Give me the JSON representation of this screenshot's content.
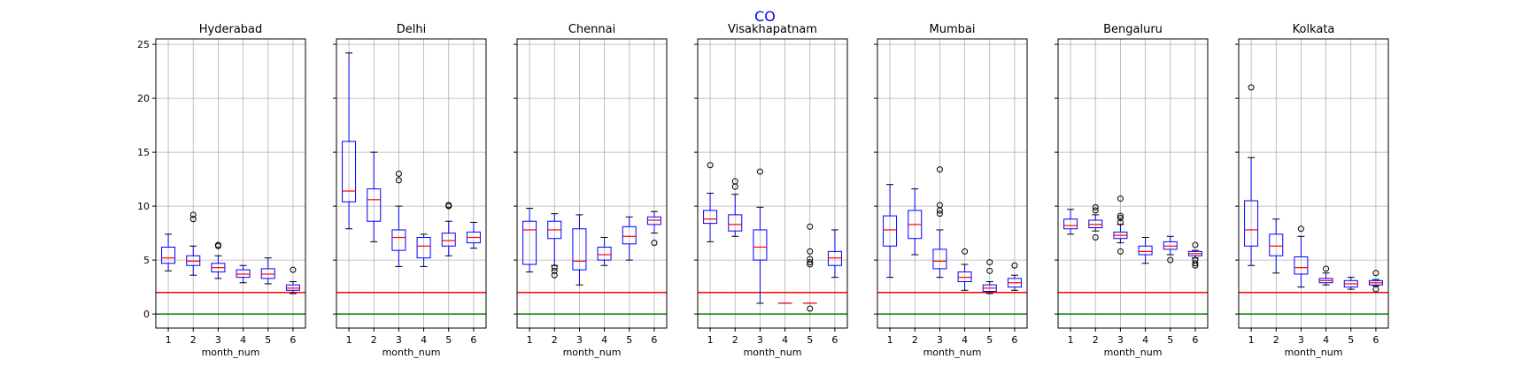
{
  "suptitle": "CO",
  "colors": {
    "box": "#0000ff",
    "median": "#ff0000",
    "whisker": "#0000ff",
    "grid": "#b0b0b0",
    "threshold_line": "#ff0000",
    "zero_line": "#008000",
    "flier": "#000000"
  },
  "chart_data": {
    "type": "boxplot",
    "ylim": [
      -1.3,
      25.5
    ],
    "yticks": [
      0,
      5,
      10,
      15,
      20,
      25
    ],
    "categories": [
      "1",
      "2",
      "3",
      "4",
      "5",
      "6"
    ],
    "xlabel": "month_num",
    "grid": true,
    "sharey": true,
    "hlines": [
      {
        "y": 2,
        "color": "red"
      },
      {
        "y": 0,
        "color": "green"
      }
    ],
    "panels": [
      {
        "title": "Hyderabad",
        "boxes": [
          {
            "low": 4.0,
            "q1": 4.7,
            "median": 5.2,
            "q3": 6.2,
            "high": 7.4,
            "fliers": []
          },
          {
            "low": 3.6,
            "q1": 4.5,
            "median": 4.9,
            "q3": 5.4,
            "high": 6.3,
            "fliers": [
              8.8,
              9.2
            ]
          },
          {
            "low": 3.3,
            "q1": 3.9,
            "median": 4.3,
            "q3": 4.7,
            "high": 5.4,
            "fliers": [
              6.3,
              6.4
            ]
          },
          {
            "low": 2.9,
            "q1": 3.4,
            "median": 3.7,
            "q3": 4.1,
            "high": 4.5,
            "fliers": []
          },
          {
            "low": 2.8,
            "q1": 3.3,
            "median": 3.7,
            "q3": 4.2,
            "high": 5.2,
            "fliers": []
          },
          {
            "low": 1.9,
            "q1": 2.2,
            "median": 2.4,
            "q3": 2.7,
            "high": 3.0,
            "fliers": [
              4.1
            ]
          }
        ]
      },
      {
        "title": "Delhi",
        "boxes": [
          {
            "low": 7.9,
            "q1": 10.4,
            "median": 11.4,
            "q3": 16.0,
            "high": 24.2,
            "fliers": []
          },
          {
            "low": 6.7,
            "q1": 8.6,
            "median": 10.6,
            "q3": 11.6,
            "high": 15.0,
            "fliers": []
          },
          {
            "low": 4.4,
            "q1": 5.9,
            "median": 7.1,
            "q3": 7.8,
            "high": 10.0,
            "fliers": [
              12.4,
              13.0
            ]
          },
          {
            "low": 4.4,
            "q1": 5.2,
            "median": 6.3,
            "q3": 7.1,
            "high": 7.4,
            "fliers": []
          },
          {
            "low": 5.4,
            "q1": 6.3,
            "median": 6.8,
            "q3": 7.5,
            "high": 8.6,
            "fliers": [
              10.0,
              10.1
            ]
          },
          {
            "low": 6.1,
            "q1": 6.6,
            "median": 7.1,
            "q3": 7.6,
            "high": 8.5,
            "fliers": []
          }
        ]
      },
      {
        "title": "Chennai",
        "boxes": [
          {
            "low": 3.9,
            "q1": 4.6,
            "median": 7.8,
            "q3": 8.6,
            "high": 9.8,
            "fliers": []
          },
          {
            "low": 4.5,
            "q1": 7.0,
            "median": 7.8,
            "q3": 8.6,
            "high": 9.3,
            "fliers": [
              3.6,
              4.0,
              4.3
            ]
          },
          {
            "low": 2.7,
            "q1": 4.1,
            "median": 4.9,
            "q3": 7.9,
            "high": 9.2,
            "fliers": []
          },
          {
            "low": 4.5,
            "q1": 5.0,
            "median": 5.5,
            "q3": 6.2,
            "high": 7.1,
            "fliers": []
          },
          {
            "low": 5.0,
            "q1": 6.5,
            "median": 7.2,
            "q3": 8.1,
            "high": 9.0,
            "fliers": []
          },
          {
            "low": 7.5,
            "q1": 8.3,
            "median": 8.7,
            "q3": 9.0,
            "high": 9.5,
            "fliers": [
              6.6
            ]
          }
        ]
      },
      {
        "title": "Visakhapatnam",
        "boxes": [
          {
            "low": 6.7,
            "q1": 8.4,
            "median": 8.8,
            "q3": 9.6,
            "high": 11.2,
            "fliers": [
              13.8
            ]
          },
          {
            "low": 7.2,
            "q1": 7.7,
            "median": 8.3,
            "q3": 9.2,
            "high": 11.1,
            "fliers": [
              11.8,
              12.3
            ]
          },
          {
            "low": 1.0,
            "q1": 5.0,
            "median": 6.2,
            "q3": 7.8,
            "high": 9.9,
            "fliers": [
              13.2
            ]
          },
          {
            "low": 1.0,
            "q1": 1.0,
            "median": 1.0,
            "q3": 1.0,
            "high": 1.0,
            "fliers": []
          },
          {
            "low": 1.0,
            "q1": 1.0,
            "median": 1.0,
            "q3": 1.0,
            "high": 1.0,
            "fliers": [
              0.5,
              4.6,
              4.8,
              5.1,
              5.8,
              8.1
            ]
          },
          {
            "low": 3.4,
            "q1": 4.5,
            "median": 5.2,
            "q3": 5.8,
            "high": 7.8,
            "fliers": []
          }
        ]
      },
      {
        "title": "Mumbai",
        "boxes": [
          {
            "low": 3.4,
            "q1": 6.3,
            "median": 7.8,
            "q3": 9.1,
            "high": 12.0,
            "fliers": []
          },
          {
            "low": 5.5,
            "q1": 7.0,
            "median": 8.3,
            "q3": 9.6,
            "high": 11.6,
            "fliers": []
          },
          {
            "low": 3.4,
            "q1": 4.2,
            "median": 4.9,
            "q3": 6.0,
            "high": 7.8,
            "fliers": [
              9.3,
              9.6,
              10.1,
              13.4
            ]
          },
          {
            "low": 2.2,
            "q1": 3.0,
            "median": 3.4,
            "q3": 3.9,
            "high": 4.6,
            "fliers": [
              5.8
            ]
          },
          {
            "low": 1.9,
            "q1": 2.1,
            "median": 2.4,
            "q3": 2.7,
            "high": 3.0,
            "fliers": [
              4.0,
              4.8
            ]
          },
          {
            "low": 2.2,
            "q1": 2.5,
            "median": 2.9,
            "q3": 3.3,
            "high": 3.6,
            "fliers": [
              4.5
            ]
          }
        ]
      },
      {
        "title": "Bengaluru",
        "boxes": [
          {
            "low": 7.4,
            "q1": 7.9,
            "median": 8.2,
            "q3": 8.8,
            "high": 9.7,
            "fliers": []
          },
          {
            "low": 7.7,
            "q1": 8.0,
            "median": 8.3,
            "q3": 8.7,
            "high": 9.2,
            "fliers": [
              7.1,
              9.6,
              9.9
            ]
          },
          {
            "low": 6.6,
            "q1": 7.0,
            "median": 7.3,
            "q3": 7.6,
            "high": 8.3,
            "fliers": [
              5.8,
              8.5,
              8.9,
              9.1,
              10.7
            ]
          },
          {
            "low": 4.7,
            "q1": 5.5,
            "median": 5.8,
            "q3": 6.3,
            "high": 7.1,
            "fliers": []
          },
          {
            "low": 5.5,
            "q1": 6.0,
            "median": 6.3,
            "q3": 6.7,
            "high": 7.2,
            "fliers": [
              5.0
            ]
          },
          {
            "low": 5.2,
            "q1": 5.4,
            "median": 5.6,
            "q3": 5.8,
            "high": 5.9,
            "fliers": [
              4.5,
              4.7,
              5.0,
              6.4
            ]
          }
        ]
      },
      {
        "title": "Kolkata",
        "boxes": [
          {
            "low": 4.5,
            "q1": 6.3,
            "median": 7.8,
            "q3": 10.5,
            "high": 14.5,
            "fliers": [
              21.0
            ]
          },
          {
            "low": 3.8,
            "q1": 5.4,
            "median": 6.3,
            "q3": 7.4,
            "high": 8.8,
            "fliers": []
          },
          {
            "low": 2.5,
            "q1": 3.7,
            "median": 4.3,
            "q3": 5.3,
            "high": 7.2,
            "fliers": [
              7.9
            ]
          },
          {
            "low": 2.7,
            "q1": 2.9,
            "median": 3.1,
            "q3": 3.3,
            "high": 3.8,
            "fliers": [
              4.2
            ]
          },
          {
            "low": 2.3,
            "q1": 2.5,
            "median": 2.8,
            "q3": 3.1,
            "high": 3.4,
            "fliers": []
          },
          {
            "low": 2.6,
            "q1": 2.7,
            "median": 2.9,
            "q3": 3.1,
            "high": 3.2,
            "fliers": [
              2.3,
              3.8
            ]
          }
        ]
      }
    ]
  }
}
